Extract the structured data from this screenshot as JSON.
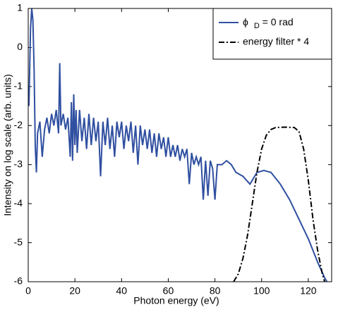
{
  "chart_data": {
    "type": "line",
    "x_label": "Photon energy (eV)",
    "y_label": "Intensity on log scale (arb. units)",
    "xlim": [
      0,
      130
    ],
    "ylim": [
      -6,
      1
    ],
    "xticks": [
      0,
      20,
      40,
      60,
      80,
      100,
      120
    ],
    "yticks": [
      1,
      0,
      -1,
      -2,
      -3,
      -4,
      -5,
      -6
    ],
    "legend": "top-right",
    "series": [
      {
        "name": "ϕD = 0 rad",
        "color": "#2f4fa0",
        "dash": "solid",
        "x": [
          0.3,
          1,
          1.5,
          2,
          2.5,
          3,
          3.5,
          4,
          5,
          6,
          7,
          8,
          9,
          10,
          11,
          12,
          13,
          13.5,
          14,
          15,
          16,
          17,
          18,
          18.5,
          19,
          19.5,
          20,
          20.5,
          21,
          22,
          23,
          24,
          25,
          26,
          27,
          28,
          29,
          30,
          31,
          32,
          33,
          34,
          35,
          36,
          37,
          38,
          39,
          40,
          41,
          42,
          43,
          44,
          45,
          46,
          47,
          48,
          49,
          50,
          51,
          52,
          53,
          54,
          55,
          56,
          57,
          58,
          59,
          60,
          61,
          62,
          63,
          64,
          65,
          66,
          67,
          68,
          69,
          70,
          71,
          72,
          73,
          74,
          75,
          76,
          77,
          78,
          79,
          80,
          81,
          83,
          85,
          87,
          89,
          92,
          95,
          98,
          101,
          104,
          108,
          112,
          116,
          120,
          124,
          127,
          128
        ],
        "values": [
          -1.5,
          0.5,
          1,
          0.7,
          -0.5,
          -2.5,
          -3.2,
          -2.2,
          -1.9,
          -2.8,
          -2.1,
          -1.8,
          -2.2,
          -1.7,
          -2.0,
          -1.6,
          -2.2,
          -0.4,
          -2.0,
          -1.7,
          -2.1,
          -1.8,
          -2.8,
          -1.4,
          -2.9,
          -1.2,
          -2.5,
          -1.6,
          -2.7,
          -1.6,
          -2.4,
          -1.8,
          -2.6,
          -1.7,
          -2.5,
          -1.8,
          -2.4,
          -1.9,
          -3.3,
          -1.9,
          -2.5,
          -1.8,
          -2.6,
          -2.0,
          -2.8,
          -1.9,
          -2.3,
          -1.9,
          -2.6,
          -2.0,
          -2.4,
          -1.9,
          -2.7,
          -2.0,
          -3.0,
          -2.0,
          -2.5,
          -2.1,
          -2.6,
          -2.1,
          -2.7,
          -2.2,
          -2.8,
          -2.2,
          -2.6,
          -2.3,
          -2.8,
          -2.3,
          -2.8,
          -2.5,
          -2.8,
          -2.5,
          -2.9,
          -2.6,
          -2.8,
          -2.6,
          -3.5,
          -2.7,
          -3.0,
          -2.8,
          -3.0,
          -2.8,
          -3.9,
          -2.9,
          -3.8,
          -2.9,
          -3.1,
          -3.9,
          -3.0,
          -3.0,
          -2.9,
          -3.0,
          -3.2,
          -3.3,
          -3.5,
          -3.2,
          -3.15,
          -3.2,
          -3.5,
          -3.9,
          -4.4,
          -4.9,
          -5.5,
          -5.9,
          -6
        ]
      },
      {
        "name": "energy filter * 4",
        "color": "#000000",
        "dash": "dashdot",
        "x": [
          88,
          90,
          92,
          94,
          96,
          98,
          100,
          102,
          104,
          106,
          110,
          114,
          116,
          118,
          120,
          122,
          124,
          126,
          127
        ],
        "values": [
          -6,
          -5.8,
          -5.4,
          -4.8,
          -4.0,
          -3.2,
          -2.6,
          -2.25,
          -2.1,
          -2.05,
          -2.04,
          -2.05,
          -2.15,
          -2.6,
          -3.4,
          -4.4,
          -5.2,
          -5.8,
          -6
        ]
      }
    ]
  }
}
